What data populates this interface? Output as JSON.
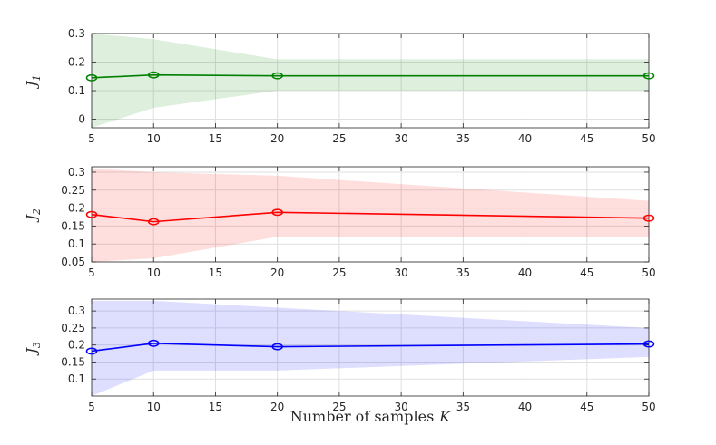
{
  "figure": {
    "xlabel": "Number of samples",
    "xlabel_symbol": "K"
  },
  "chart_data": [
    {
      "type": "line",
      "ylabel": "J",
      "ylabel_sub": "1",
      "color": "#008000",
      "band_color": "#008000",
      "x": [
        5,
        10,
        20,
        50
      ],
      "y": [
        0.145,
        0.155,
        0.152,
        0.152
      ],
      "band_upper": [
        0.3,
        0.28,
        0.21,
        0.21
      ],
      "band_lower": [
        -0.03,
        0.04,
        0.1,
        0.1
      ],
      "xlim": [
        5,
        50
      ],
      "ylim": [
        -0.03,
        0.3
      ],
      "xticks": [
        5,
        10,
        15,
        20,
        25,
        30,
        35,
        40,
        45,
        50
      ],
      "yticks": [
        0,
        0.1,
        0.2,
        0.3
      ],
      "yticklabels": [
        "0",
        "0.1",
        "0.2",
        "0.3"
      ],
      "grid": true
    },
    {
      "type": "line",
      "ylabel": "J",
      "ylabel_sub": "2",
      "color": "#ff0000",
      "band_color": "#ff0000",
      "x": [
        5,
        10,
        20,
        50
      ],
      "y": [
        0.182,
        0.162,
        0.188,
        0.172
      ],
      "band_upper": [
        0.31,
        0.3,
        0.29,
        0.22
      ],
      "band_lower": [
        0.05,
        0.06,
        0.12,
        0.12
      ],
      "xlim": [
        5,
        50
      ],
      "ylim": [
        0.05,
        0.315
      ],
      "xticks": [
        5,
        10,
        15,
        20,
        25,
        30,
        35,
        40,
        45,
        50
      ],
      "yticks": [
        0.05,
        0.1,
        0.15,
        0.2,
        0.25,
        0.3
      ],
      "yticklabels": [
        "0.05",
        "0.1",
        "0.15",
        "0.2",
        "0.25",
        "0.3"
      ],
      "grid": true
    },
    {
      "type": "line",
      "ylabel": "J",
      "ylabel_sub": "3",
      "color": "#0000ff",
      "band_color": "#0000ff",
      "x": [
        5,
        10,
        20,
        50
      ],
      "y": [
        0.182,
        0.205,
        0.195,
        0.203
      ],
      "band_upper": [
        0.33,
        0.33,
        0.31,
        0.25
      ],
      "band_lower": [
        0.05,
        0.125,
        0.125,
        0.165
      ],
      "xlim": [
        5,
        50
      ],
      "ylim": [
        0.05,
        0.335
      ],
      "xticks": [
        5,
        10,
        15,
        20,
        25,
        30,
        35,
        40,
        45,
        50
      ],
      "yticks": [
        0.1,
        0.15,
        0.2,
        0.25,
        0.3
      ],
      "yticklabels": [
        "0.1",
        "0.15",
        "0.2",
        "0.25",
        "0.3"
      ],
      "grid": true
    }
  ]
}
